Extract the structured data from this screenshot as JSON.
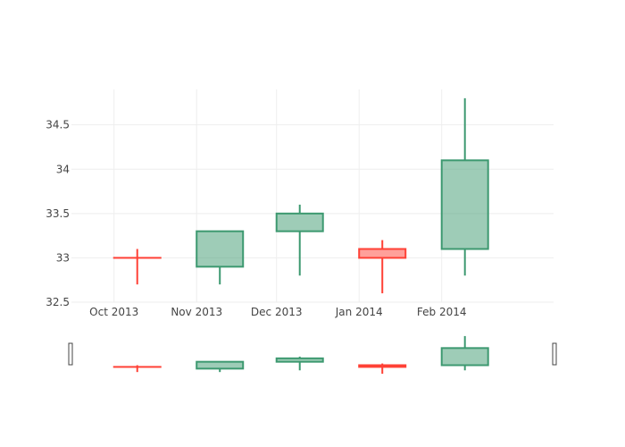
{
  "chart_data": {
    "type": "candlestick",
    "title": "",
    "xlabel": "",
    "ylabel": "",
    "x": [
      "2013-10-01",
      "2013-11-01",
      "2013-12-01",
      "2014-01-01",
      "2014-02-01"
    ],
    "open": [
      33.0,
      32.9,
      33.3,
      33.1,
      33.1
    ],
    "high": [
      33.1,
      33.3,
      33.6,
      33.2,
      34.8
    ],
    "low": [
      32.7,
      32.7,
      32.8,
      32.6,
      32.8
    ],
    "close": [
      33.0,
      33.3,
      33.5,
      33.0,
      34.1
    ],
    "ylim": [
      32.5,
      34.9
    ],
    "xlim": [
      "2013-09-15",
      "2014-03-15"
    ],
    "yticks": [
      32.5,
      33,
      33.5,
      34,
      34.5
    ],
    "ytick_labels": [
      "32.5",
      "33",
      "33.5",
      "34",
      "34.5"
    ],
    "xticks": [
      "2013-10-01",
      "2013-11-01",
      "2013-12-01",
      "2014-01-01",
      "2014-02-01"
    ],
    "xtick_labels": [
      "Oct 2013",
      "Nov 2013",
      "Dec 2013",
      "Jan 2014",
      "Feb 2014"
    ],
    "grid": true,
    "legend": "none",
    "range_slider": true,
    "colors": {
      "increasing": "#3d9970",
      "increasing_fill": "rgba(61,153,112,0.5)",
      "decreasing": "#ff4136",
      "decreasing_fill": "rgba(255,65,54,0.5)",
      "grid": "#eeeeee"
    }
  }
}
